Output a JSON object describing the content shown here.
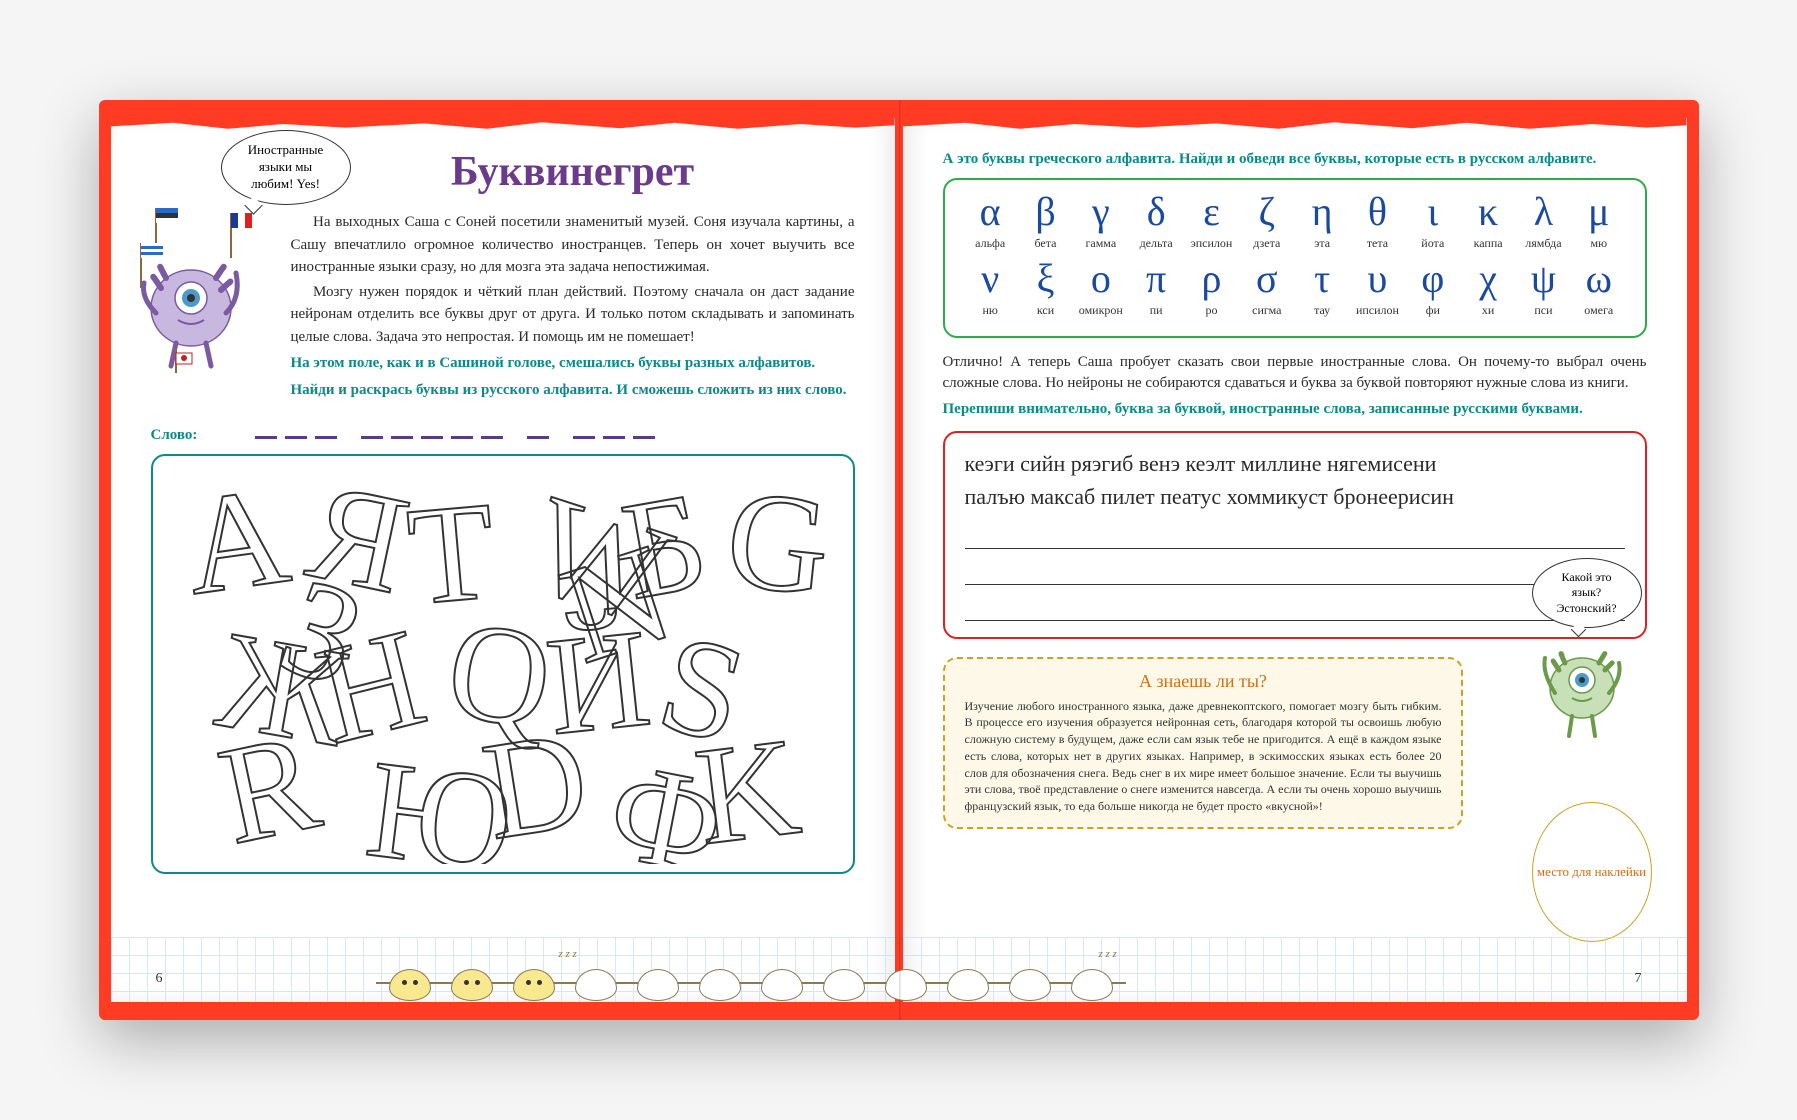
{
  "left_page": {
    "speech_bubble": "Иностранные языки мы любим! Yes!",
    "title": "Буквинегрет",
    "paragraph1": "На выходных Саша с Соней посетили знаменитый музей. Соня изучала картины, а Сашу впечатлило огромное количество иностранцев. Теперь он хочет выучить все иностранные языки сразу, но для мозга эта задача непостижимая.",
    "paragraph2": "Мозгу нужен порядок и чёткий план действий. Поэтому сначала он даст задание нейронам отделить все буквы друг от друга. И только потом складывать и запоминать целые слова. Задача это непростая. И помощь им не помешает!",
    "teal_line1": "На этом поле, как и в Сашиной голове, смешались буквы разных алфавитов.",
    "teal_line2": "Найди и раскрась буквы из русского алфавита. И сможешь сложить из них слово.",
    "word_label": "Слово:",
    "blank_groups": [
      3,
      5,
      1,
      3
    ],
    "page_number": "6"
  },
  "right_page": {
    "greek_instruction": "А это буквы греческого алфавита. Найди и обведи все буквы, которые есть в русском алфавите.",
    "greek_row1": [
      {
        "letter": "α",
        "name": "альфа"
      },
      {
        "letter": "β",
        "name": "бета"
      },
      {
        "letter": "γ",
        "name": "гамма"
      },
      {
        "letter": "δ",
        "name": "дельта"
      },
      {
        "letter": "ε",
        "name": "эпсилон"
      },
      {
        "letter": "ζ",
        "name": "дзета"
      },
      {
        "letter": "η",
        "name": "эта"
      },
      {
        "letter": "θ",
        "name": "тета"
      },
      {
        "letter": "ι",
        "name": "йота"
      },
      {
        "letter": "κ",
        "name": "каппа"
      },
      {
        "letter": "λ",
        "name": "лямбда"
      },
      {
        "letter": "μ",
        "name": "мю"
      }
    ],
    "greek_row2": [
      {
        "letter": "ν",
        "name": "ню"
      },
      {
        "letter": "ξ",
        "name": "кси"
      },
      {
        "letter": "ο",
        "name": "омикрон"
      },
      {
        "letter": "π",
        "name": "пи"
      },
      {
        "letter": "ρ",
        "name": "ро"
      },
      {
        "letter": "σ",
        "name": "сигма"
      },
      {
        "letter": "τ",
        "name": "тау"
      },
      {
        "letter": "υ",
        "name": "ипсилон"
      },
      {
        "letter": "φ",
        "name": "фи"
      },
      {
        "letter": "χ",
        "name": "хи"
      },
      {
        "letter": "ψ",
        "name": "пси"
      },
      {
        "letter": "ω",
        "name": "омега"
      }
    ],
    "body1": "Отлично! А теперь Саша пробует сказать свои первые иностранные слова. Он почему-то выбрал очень сложные слова. Но нейроны не собираются сдаваться и буква за буквой повторяют нужные слова из книги.",
    "teal_line": "Перепиши внимательно, буква за буквой, иностранные слова, записанные русскими буквами.",
    "foreign_line1": "кеэги сийн ряэгиб венэ кеэлт миллине нягемисени",
    "foreign_line2": "палъю максаб пилет пеатус хоммикуст бронеерисин",
    "speech_bubble": "Какой это язык? Эстонский?",
    "fact_title": "А знаешь ли ты?",
    "fact_text": "Изучение любого иностранного языка, даже древнекоптского, помогает мозгу быть гибким. В процессе его изучения образуется нейронная сеть, благодаря которой ты освоишь любую сложную систему в будущем, даже если сам язык тебе не пригодится. А ещё в каждом языке есть слова, которых нет в других языках. Например, в эскимосских языках есть более 20 слов для обозначения снега. Ведь снег в их мире имеет большое значение. Если ты выучишь эти слова, твоё представление о снеге изменится навсегда. А если ты очень хорошо выучишь французский язык, то еда больше никогда не будет просто «вкусной»!",
    "sticker_label": "место для наклейки",
    "page_number": "7"
  },
  "colors": {
    "book_cover": "#ff3b24",
    "title_purple": "#6b3a8a",
    "teal": "#0a8a8a",
    "greek_blue": "#1a4aa0",
    "greek_border": "#2faa4a",
    "red_border": "#e02020",
    "fact_border": "#d0a020",
    "fact_bg": "#fef8e8",
    "orange_text": "#d07010"
  },
  "neurons": {
    "awake_count": 3,
    "asleep_count": 9
  }
}
